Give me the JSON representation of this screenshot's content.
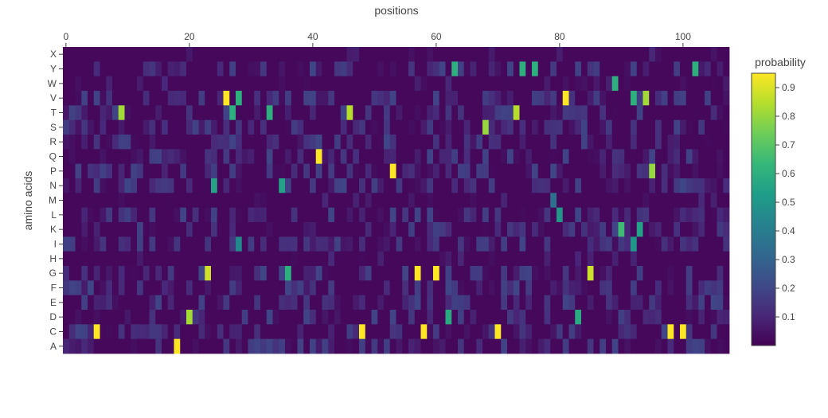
{
  "chart_data": {
    "type": "heatmap",
    "title": "",
    "xlabel": "positions",
    "ylabel": "amino acids",
    "x_ticks": [
      0,
      20,
      40,
      60,
      80,
      100
    ],
    "x_range": [
      0,
      107
    ],
    "y_categories": [
      "X",
      "Y",
      "W",
      "V",
      "T",
      "S",
      "R",
      "Q",
      "P",
      "N",
      "M",
      "L",
      "K",
      "I",
      "H",
      "G",
      "F",
      "E",
      "D",
      "C",
      "A"
    ],
    "colorscale": "viridis",
    "colorbar": {
      "title": "probability",
      "tick_values": [
        0.1,
        0.2,
        0.3,
        0.4,
        0.5,
        0.6,
        0.7,
        0.8,
        0.9
      ],
      "tick_labels": [
        "0.1",
        "0.2",
        "0.3",
        "0.4",
        "0.5",
        "0.6",
        "0.7",
        "0.8",
        "0.9"
      ],
      "range": [
        0.0,
        0.95
      ]
    },
    "background_value": 0.02,
    "noise_max": 0.18,
    "highlights": [
      {
        "aa": "A",
        "positions": [
          18
        ],
        "value": 0.95
      },
      {
        "aa": "C",
        "positions": [
          5,
          48,
          58,
          70,
          98,
          100
        ],
        "value": 0.95
      },
      {
        "aa": "D",
        "positions": [
          20
        ],
        "value": 0.82
      },
      {
        "aa": "D",
        "positions": [
          62,
          83
        ],
        "value": 0.58
      },
      {
        "aa": "G",
        "positions": [
          23,
          85
        ],
        "value": 0.88
      },
      {
        "aa": "G",
        "positions": [
          57,
          60
        ],
        "value": 0.95
      },
      {
        "aa": "G",
        "positions": [
          36
        ],
        "value": 0.6
      },
      {
        "aa": "I",
        "positions": [
          28
        ],
        "value": 0.45
      },
      {
        "aa": "I",
        "positions": [
          92
        ],
        "value": 0.5
      },
      {
        "aa": "K",
        "positions": [
          90
        ],
        "value": 0.65
      },
      {
        "aa": "K",
        "positions": [
          93
        ],
        "value": 0.55
      },
      {
        "aa": "L",
        "positions": [
          80
        ],
        "value": 0.5
      },
      {
        "aa": "M",
        "positions": [
          79
        ],
        "value": 0.35
      },
      {
        "aa": "N",
        "positions": [
          24,
          35
        ],
        "value": 0.55
      },
      {
        "aa": "P",
        "positions": [
          53
        ],
        "value": 0.95
      },
      {
        "aa": "P",
        "positions": [
          95
        ],
        "value": 0.8
      },
      {
        "aa": "Q",
        "positions": [
          41
        ],
        "value": 0.95
      },
      {
        "aa": "S",
        "positions": [
          68
        ],
        "value": 0.8
      },
      {
        "aa": "T",
        "positions": [
          9
        ],
        "value": 0.82
      },
      {
        "aa": "T",
        "positions": [
          46,
          73
        ],
        "value": 0.85
      },
      {
        "aa": "T",
        "positions": [
          27,
          33
        ],
        "value": 0.6
      },
      {
        "aa": "V",
        "positions": [
          26,
          81
        ],
        "value": 0.95
      },
      {
        "aa": "V",
        "positions": [
          94
        ],
        "value": 0.82
      },
      {
        "aa": "V",
        "positions": [
          28,
          92
        ],
        "value": 0.6
      },
      {
        "aa": "W",
        "positions": [
          89
        ],
        "value": 0.6
      },
      {
        "aa": "Y",
        "positions": [
          63,
          74,
          76,
          102
        ],
        "value": 0.6
      }
    ]
  }
}
